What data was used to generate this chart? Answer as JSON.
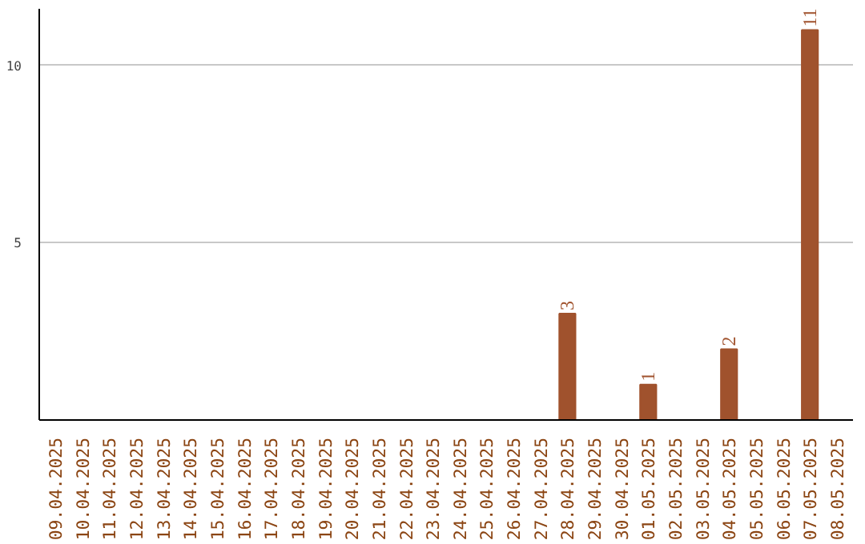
{
  "chart_data": {
    "type": "bar",
    "categories": [
      "09.04.2025",
      "10.04.2025",
      "11.04.2025",
      "12.04.2025",
      "13.04.2025",
      "14.04.2025",
      "15.04.2025",
      "16.04.2025",
      "17.04.2025",
      "18.04.2025",
      "19.04.2025",
      "20.04.2025",
      "21.04.2025",
      "22.04.2025",
      "23.04.2025",
      "24.04.2025",
      "25.04.2025",
      "26.04.2025",
      "27.04.2025",
      "28.04.2025",
      "29.04.2025",
      "30.04.2025",
      "01.05.2025",
      "02.05.2025",
      "03.05.2025",
      "04.05.2025",
      "05.05.2025",
      "06.05.2025",
      "07.05.2025",
      "08.05.2025"
    ],
    "values": [
      0,
      0,
      0,
      0,
      0,
      0,
      0,
      0,
      0,
      0,
      0,
      0,
      0,
      0,
      0,
      0,
      0,
      0,
      0,
      3,
      0,
      0,
      1,
      0,
      0,
      2,
      0,
      0,
      11,
      0
    ],
    "value_labels": [
      null,
      null,
      null,
      null,
      null,
      null,
      null,
      null,
      null,
      null,
      null,
      null,
      null,
      null,
      null,
      null,
      null,
      null,
      null,
      "3",
      null,
      null,
      "1",
      null,
      null,
      "2",
      null,
      null,
      "11",
      null
    ],
    "color": "#a0522d",
    "ylim": [
      0,
      11.6
    ],
    "yticks": [
      {
        "value": 0,
        "label": null
      },
      5,
      10
    ],
    "grid": "y"
  }
}
